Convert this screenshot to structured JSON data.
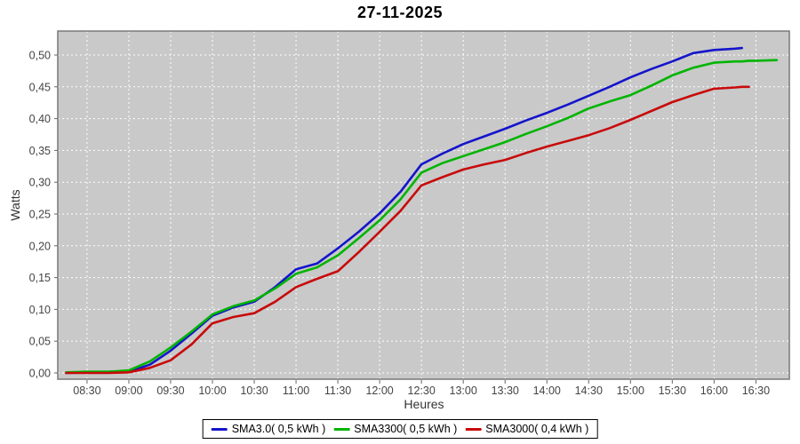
{
  "title": "27-11-2025",
  "colors": {
    "plot_background": "#C9C9C9",
    "plot_border": "#7F7F7F",
    "gridline": "#FFFFFF",
    "tick_mark": "#666666",
    "tick_label": "#444444",
    "axis_label": "#333333",
    "title_text": "#000000",
    "legend_border": "#000000",
    "legend_background": "#FFFFFF"
  },
  "chart_data": {
    "type": "line",
    "title": "27-11-2025",
    "xlabel": "Heures",
    "ylabel": "Watts",
    "grid": true,
    "legend_position": "bottom",
    "x_range_minutes": [
      489,
      1014
    ],
    "ylim": [
      -0.0098,
      0.5377
    ],
    "x_tick_minutes": [
      510,
      540,
      570,
      600,
      630,
      660,
      690,
      720,
      750,
      780,
      810,
      840,
      870,
      900,
      930,
      960,
      990
    ],
    "x_tick_labels": [
      "08:30",
      "09:00",
      "09:30",
      "10:00",
      "10:30",
      "11:00",
      "11:30",
      "12:00",
      "12:30",
      "13:00",
      "13:30",
      "14:00",
      "14:30",
      "15:00",
      "15:30",
      "16:00",
      "16:30"
    ],
    "y_tick_values": [
      0.0,
      0.05,
      0.1,
      0.15,
      0.2,
      0.25,
      0.3,
      0.35,
      0.4,
      0.45,
      0.5
    ],
    "y_tick_labels": [
      "0,00",
      "0,05",
      "0,10",
      "0,15",
      "0,20",
      "0,25",
      "0,30",
      "0,35",
      "0,40",
      "0,45",
      "0,50"
    ],
    "x_minutes": [
      495,
      510,
      525,
      540,
      555,
      570,
      585,
      600,
      615,
      630,
      645,
      660,
      675,
      690,
      705,
      720,
      735,
      750,
      765,
      780,
      795,
      810,
      825,
      840,
      855,
      870,
      885,
      900,
      915,
      930,
      945,
      960,
      975,
      980,
      985,
      990,
      1005
    ],
    "series": [
      {
        "name": "SMA3.0( 0,5 kWh )",
        "color": "#1414CC",
        "values": [
          0.0,
          0.001,
          0.001,
          0.002,
          0.013,
          0.035,
          0.062,
          0.09,
          0.103,
          0.112,
          0.135,
          0.163,
          0.172,
          0.196,
          0.222,
          0.251,
          0.285,
          0.328,
          0.345,
          0.36,
          0.372,
          0.384,
          0.397,
          0.409,
          0.422,
          0.436,
          0.45,
          0.465,
          0.478,
          0.49,
          0.503,
          0.508,
          0.51,
          0.511,
          null,
          null,
          null
        ]
      },
      {
        "name": "SMA3300( 0,5 kWh )",
        "color": "#00B400",
        "values": [
          0.001,
          0.002,
          0.002,
          0.004,
          0.018,
          0.04,
          0.065,
          0.092,
          0.105,
          0.114,
          0.133,
          0.156,
          0.166,
          0.185,
          0.212,
          0.24,
          0.273,
          0.315,
          0.33,
          0.341,
          0.352,
          0.363,
          0.376,
          0.388,
          0.401,
          0.416,
          0.427,
          0.437,
          0.452,
          0.468,
          0.48,
          0.488,
          0.49,
          0.49,
          0.491,
          0.491,
          0.492
        ]
      },
      {
        "name": "SMA3000( 0,4 kWh )",
        "color": "#C80A0A",
        "values": [
          0.0,
          0.0,
          0.0,
          0.001,
          0.008,
          0.02,
          0.045,
          0.078,
          0.088,
          0.094,
          0.112,
          0.135,
          0.148,
          0.16,
          0.19,
          0.222,
          0.255,
          0.295,
          0.308,
          0.32,
          0.328,
          0.335,
          0.346,
          0.356,
          0.365,
          0.374,
          0.385,
          0.398,
          0.412,
          0.426,
          0.437,
          0.447,
          0.449,
          0.45,
          0.45,
          null,
          null
        ]
      }
    ]
  }
}
